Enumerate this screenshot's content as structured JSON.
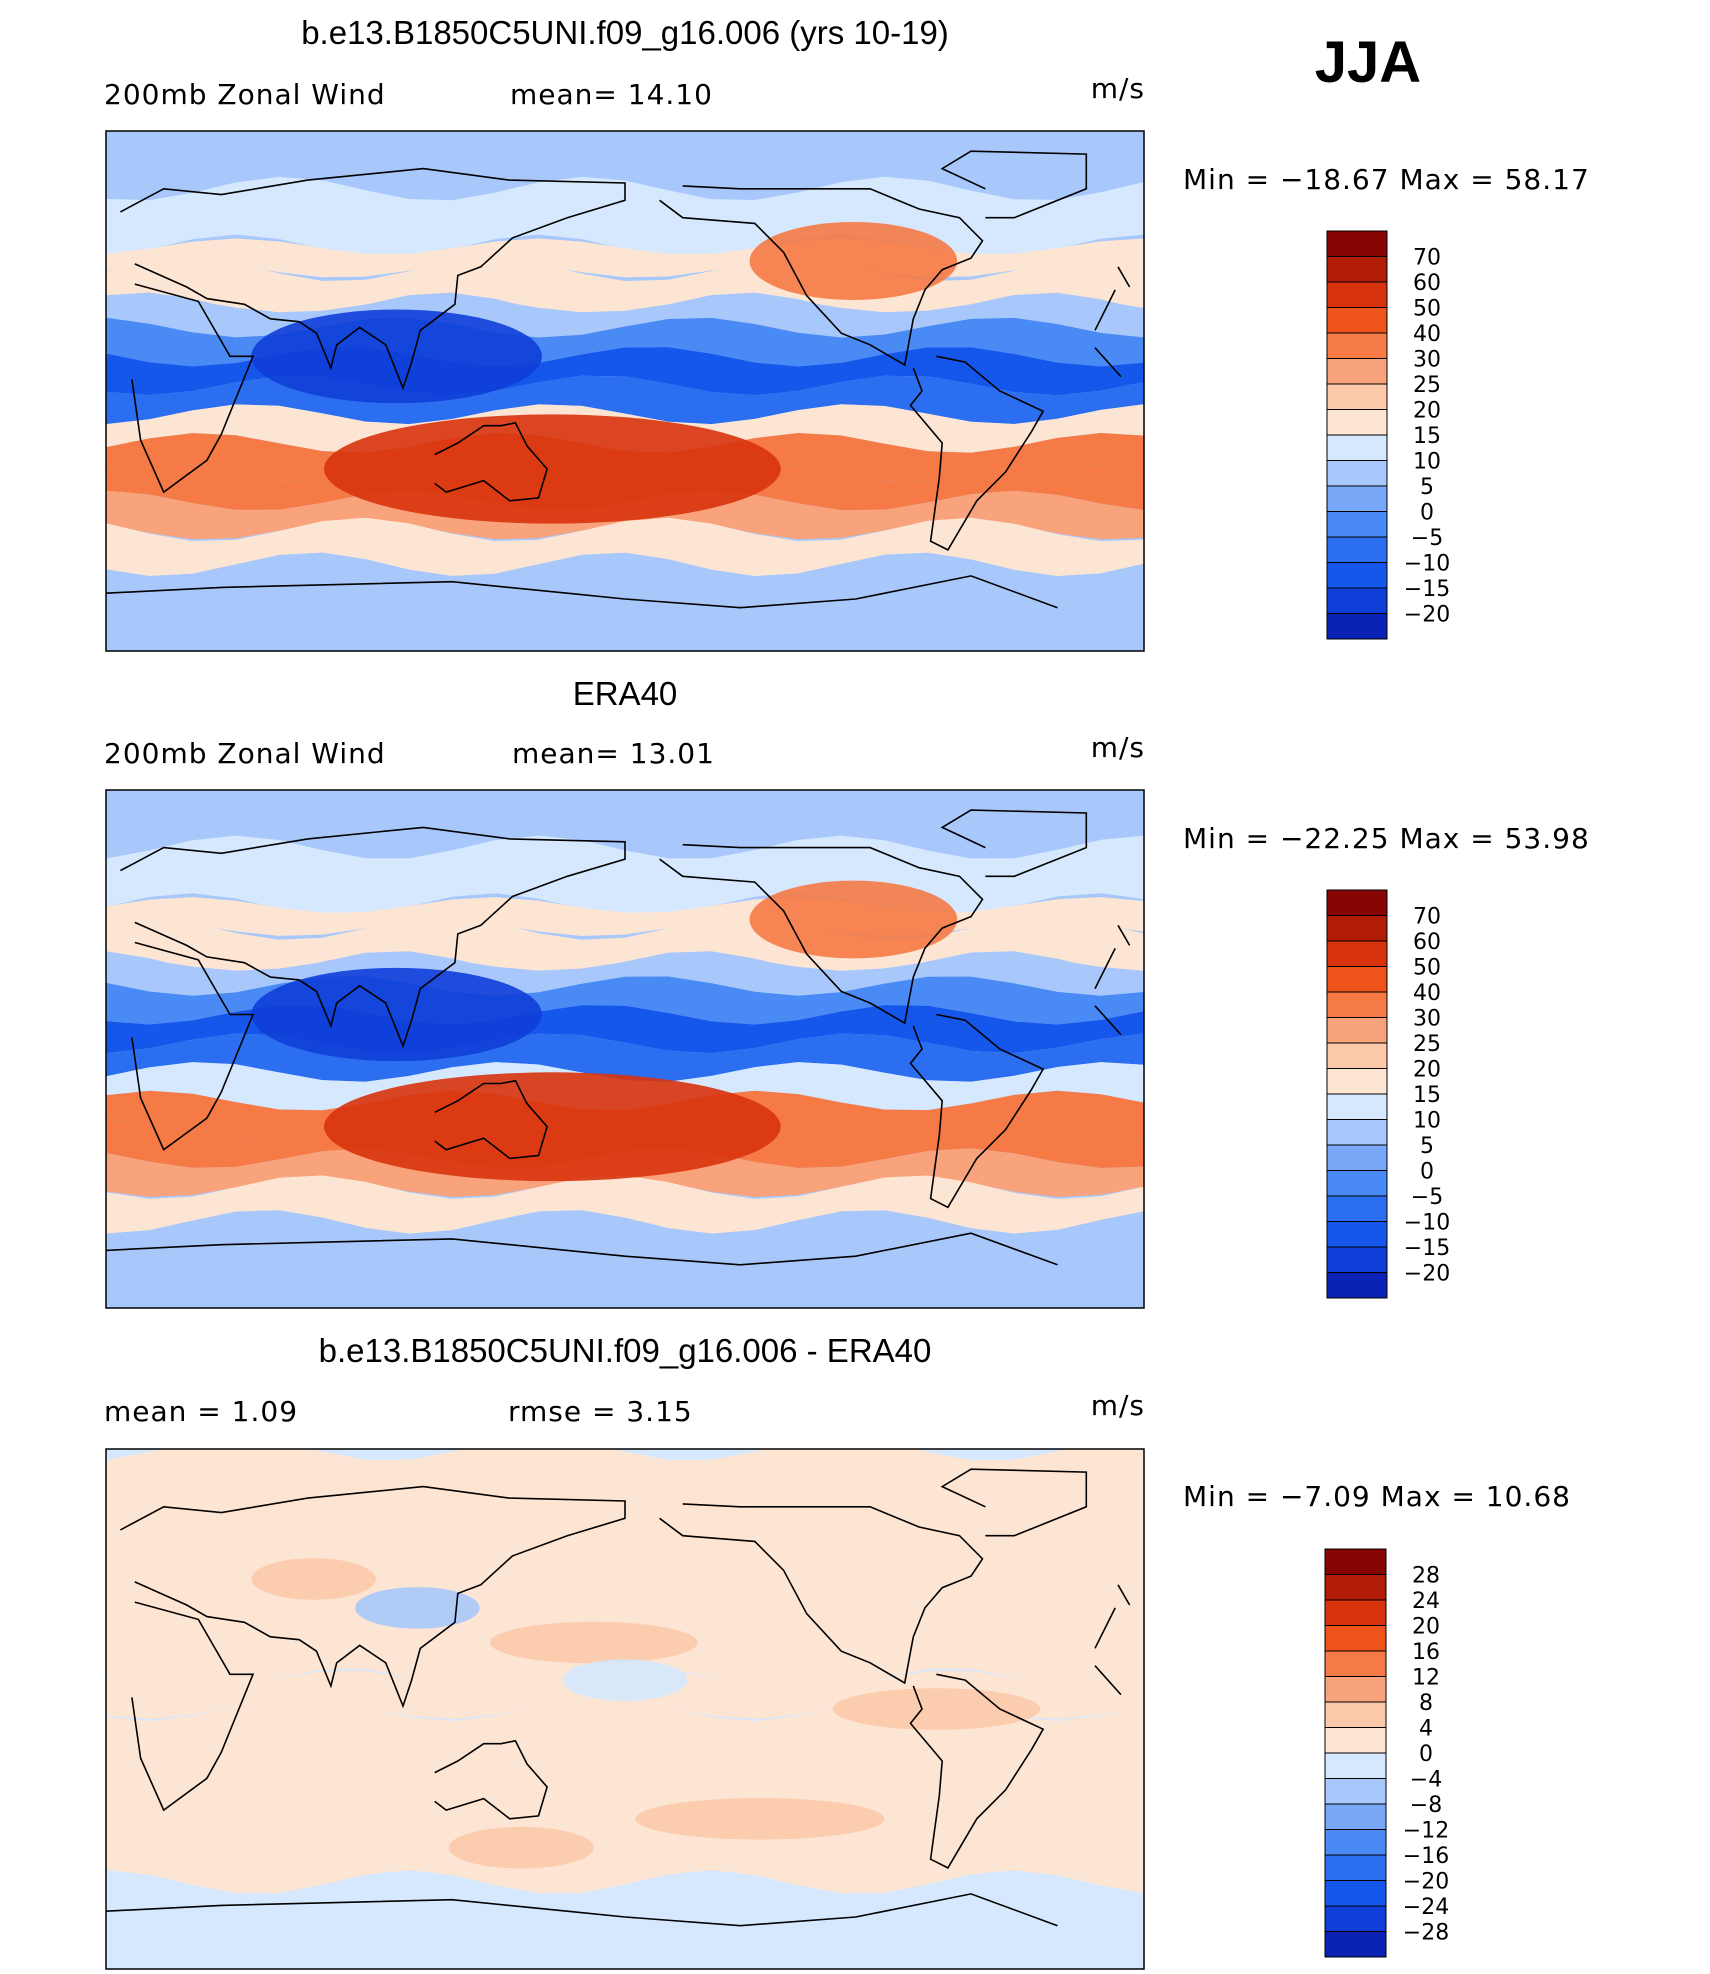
{
  "season": "JJA",
  "colors": {
    "wind_scale": [
      "#05058a",
      "#0a23b4",
      "#0f3ed8",
      "#1657eb",
      "#2b6ef0",
      "#4a8af5",
      "#79a8f8",
      "#a8c8fb",
      "#d5e8fd",
      "#fde5d4",
      "#fcc9aa",
      "#f9a37c",
      "#f57a45",
      "#ee531c",
      "#d8330d",
      "#b11c06",
      "#850603"
    ],
    "diff_scale": [
      "#05058a",
      "#0a23b4",
      "#0f3ed8",
      "#1657eb",
      "#2b6ef0",
      "#4a8af5",
      "#79a8f8",
      "#a8c8fb",
      "#d5e8fd",
      "#fde5d4",
      "#fcc9aa",
      "#f9a37c",
      "#f57a45",
      "#ee531c",
      "#d8330d",
      "#b11c06",
      "#850603"
    ],
    "coast": "#000000"
  },
  "chart_data": [
    {
      "type": "heatmap",
      "title": "b.e13.B1850C5UNI.f09_g16.006 (yrs 10-19)",
      "left_label": "200mb  Zonal  Wind",
      "center_label": "mean=   14.10",
      "units": "m/s",
      "minmax": "Min  =  −18.67  Max  =    58.17",
      "colorbar_levels": [
        "70",
        "60",
        "50",
        "40",
        "30",
        "25",
        "20",
        "15",
        "10",
        "5",
        "0",
        "−5",
        "−10",
        "−15",
        "−20"
      ],
      "bands": [
        {
          "lat": 90,
          "value": 6
        },
        {
          "lat": 70,
          "value": 8
        },
        {
          "lat": 50,
          "value": 14
        },
        {
          "lat": 42,
          "value": 22
        },
        {
          "lat": 30,
          "value": 14
        },
        {
          "lat": 22,
          "value": 4
        },
        {
          "lat": 12,
          "value": -8
        },
        {
          "lat": 2,
          "value": -13
        },
        {
          "lat": -8,
          "value": 2
        },
        {
          "lat": -18,
          "value": 30
        },
        {
          "lat": -28,
          "value": 44
        },
        {
          "lat": -38,
          "value": 32
        },
        {
          "lat": -48,
          "value": 22
        },
        {
          "lat": -60,
          "value": 10
        },
        {
          "lat": -75,
          "value": 6
        },
        {
          "lat": -90,
          "value": 4
        }
      ]
    },
    {
      "type": "heatmap",
      "title": "ERA40",
      "left_label": "200mb  Zonal  Wind",
      "center_label": "mean=   13.01",
      "units": "m/s",
      "minmax": "Min  =  −22.25  Max  =    53.98",
      "colorbar_levels": [
        "70",
        "60",
        "50",
        "40",
        "30",
        "25",
        "20",
        "15",
        "10",
        "5",
        "0",
        "−5",
        "−10",
        "−15",
        "−20"
      ],
      "bands": [
        {
          "lat": 90,
          "value": 6
        },
        {
          "lat": 70,
          "value": 8
        },
        {
          "lat": 50,
          "value": 12
        },
        {
          "lat": 42,
          "value": 20
        },
        {
          "lat": 30,
          "value": 12
        },
        {
          "lat": 22,
          "value": 2
        },
        {
          "lat": 12,
          "value": -10
        },
        {
          "lat": 2,
          "value": -16
        },
        {
          "lat": -8,
          "value": 0
        },
        {
          "lat": -18,
          "value": 28
        },
        {
          "lat": -28,
          "value": 42
        },
        {
          "lat": -38,
          "value": 30
        },
        {
          "lat": -48,
          "value": 20
        },
        {
          "lat": -60,
          "value": 12
        },
        {
          "lat": -75,
          "value": 6
        },
        {
          "lat": -90,
          "value": 4
        }
      ]
    },
    {
      "type": "heatmap",
      "title": "b.e13.B1850C5UNI.f09_g16.006 - ERA40",
      "left_label": "mean  =      1.09",
      "center_label": "rmse  =      3.15",
      "units": "m/s",
      "minmax": "Min  =    −7.09  Max  =    10.68",
      "colorbar_levels": [
        "28",
        "24",
        "20",
        "16",
        "12",
        "8",
        "4",
        "0",
        "−4",
        "−8",
        "−12",
        "−16",
        "−20",
        "−24",
        "−28"
      ],
      "bands": [
        {
          "lat": 90,
          "value": -1
        },
        {
          "lat": 60,
          "value": 1
        },
        {
          "lat": 40,
          "value": -1
        },
        {
          "lat": 25,
          "value": 2
        },
        {
          "lat": 10,
          "value": -1
        },
        {
          "lat": 0,
          "value": 1
        },
        {
          "lat": -15,
          "value": -1
        },
        {
          "lat": -30,
          "value": 2
        },
        {
          "lat": -45,
          "value": 1
        },
        {
          "lat": -60,
          "value": -1
        },
        {
          "lat": -90,
          "value": -1
        }
      ]
    }
  ]
}
